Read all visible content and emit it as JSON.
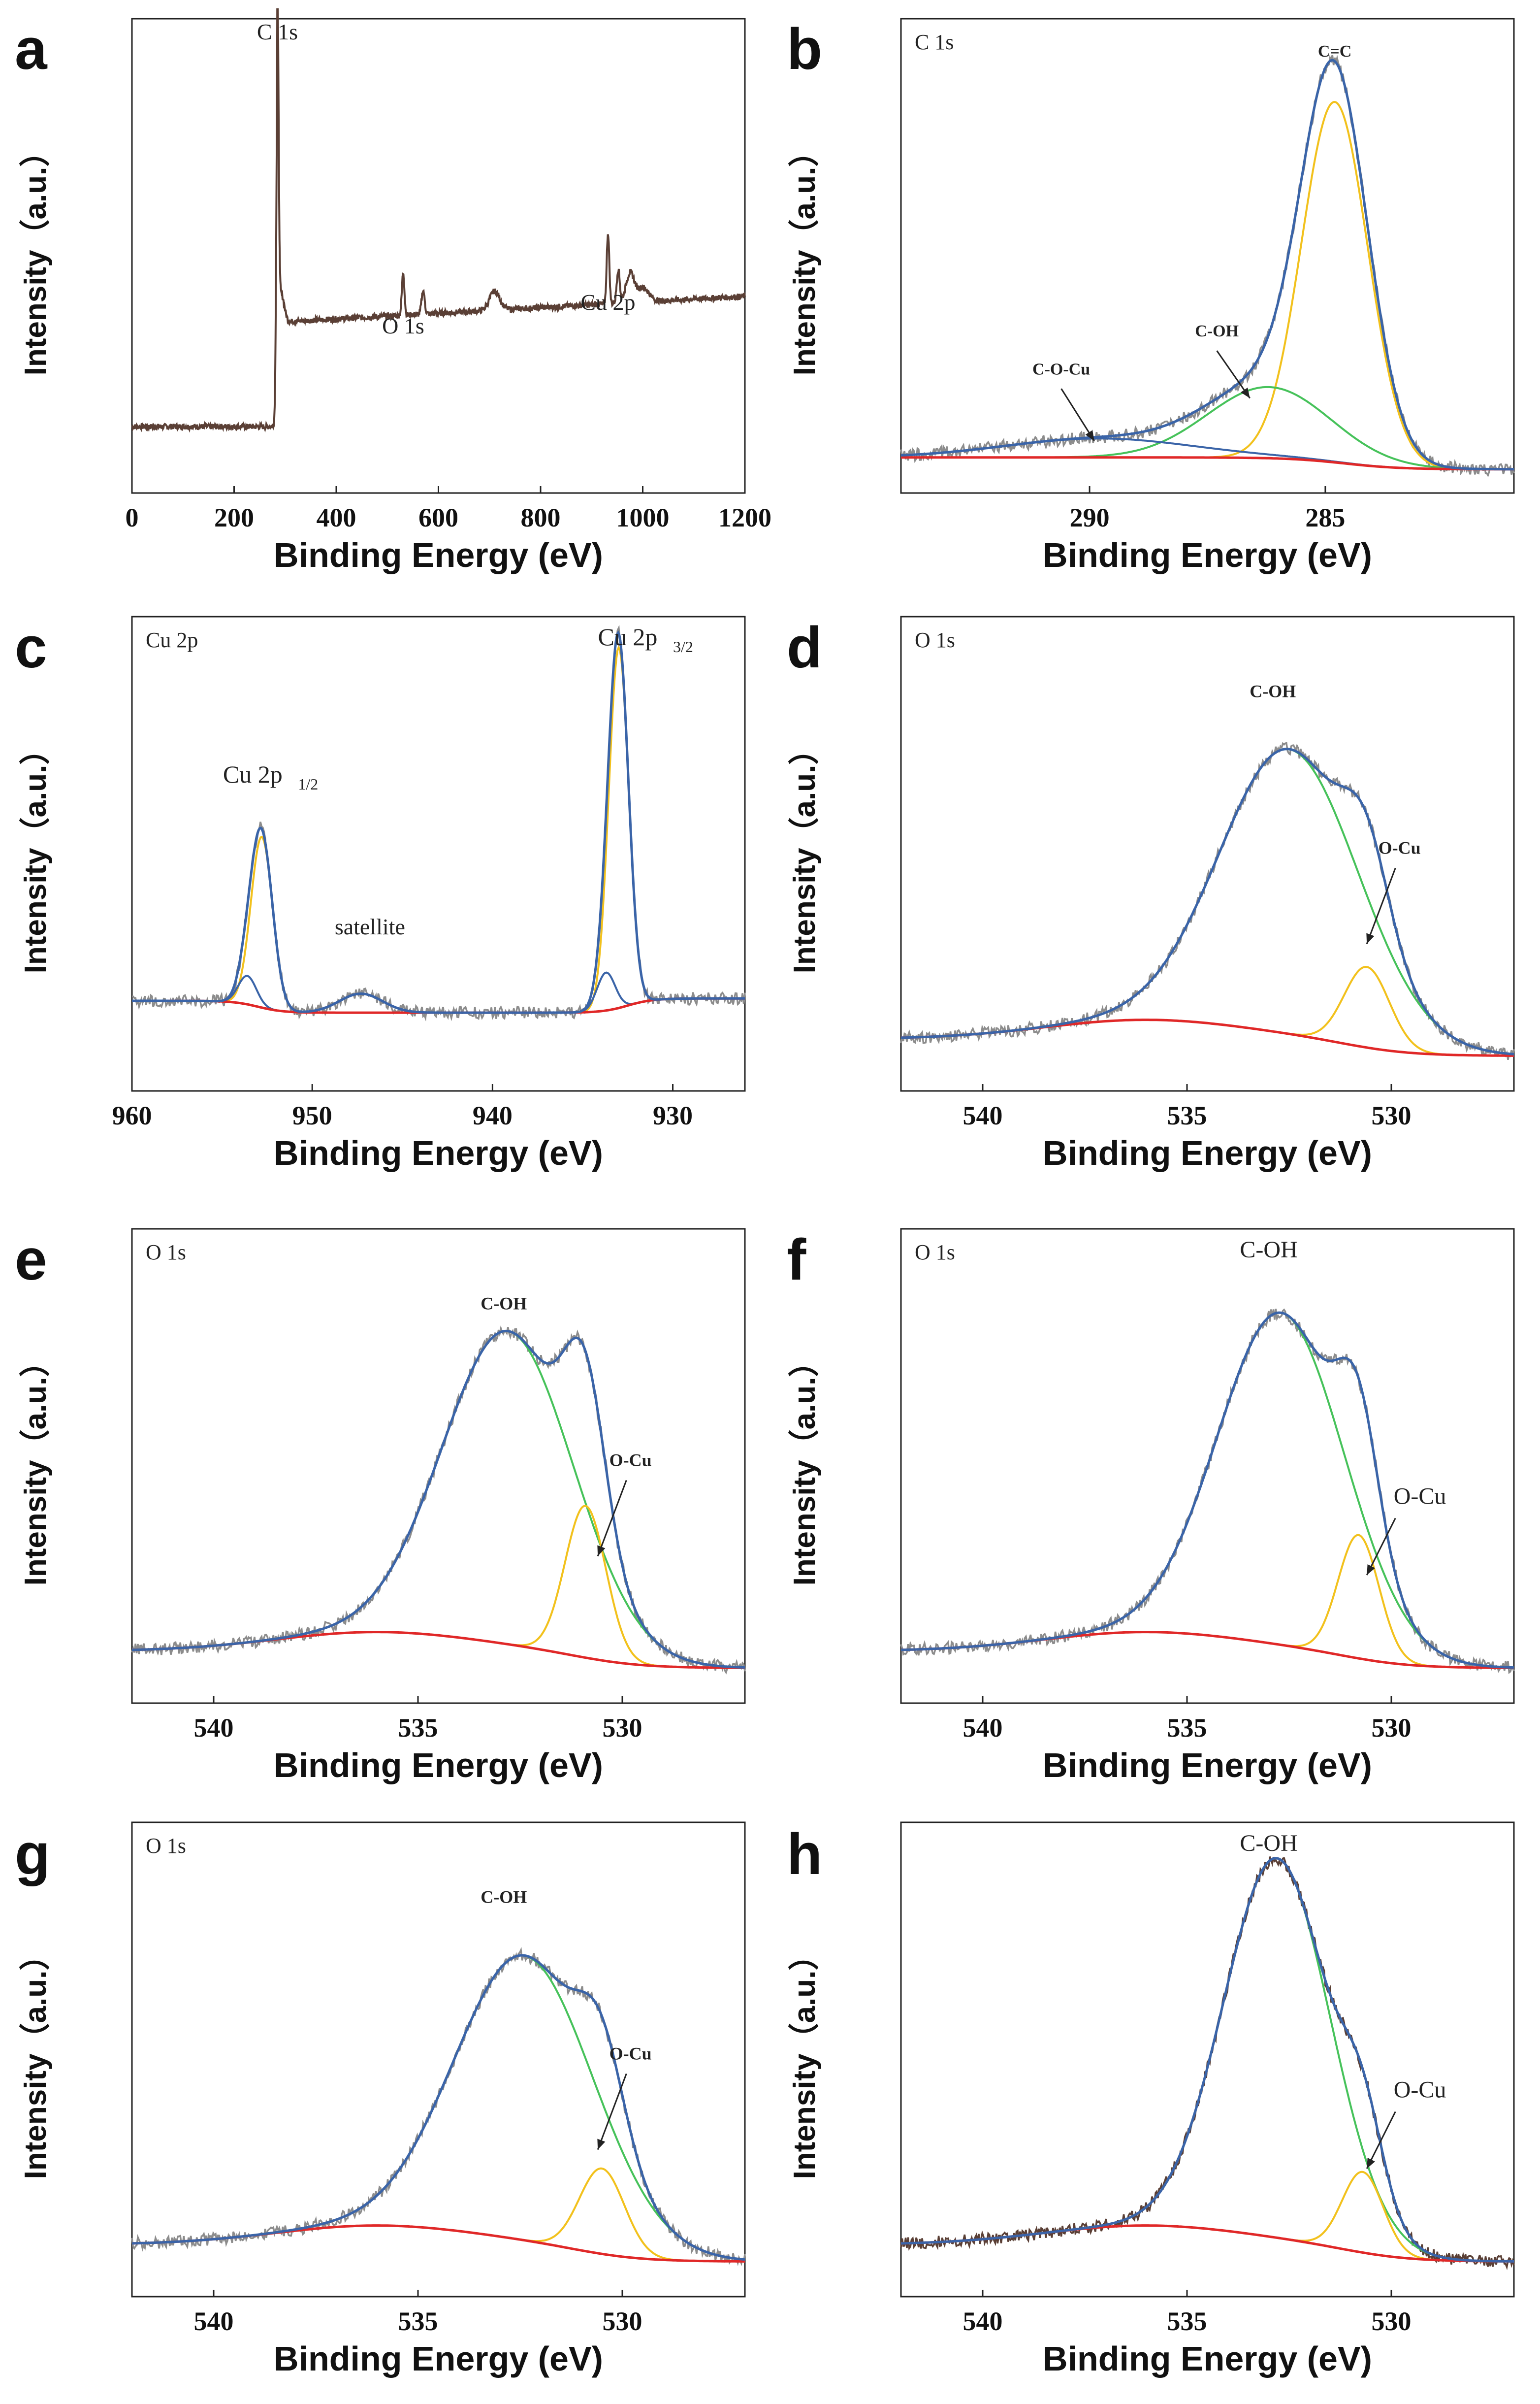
{
  "figure": {
    "axis_label_x": "Binding Energy (eV)",
    "axis_label_y": "Intensity（a.u.）"
  },
  "colors": {
    "raw": "#8c8c8c",
    "raw_dark": "#5a3f35",
    "envelope": "#3a64a8",
    "coh": "#46c25a",
    "ocu": "#f2c11c",
    "cc": "#f2c11c",
    "baseline": "#e02828",
    "axis": "#222222"
  },
  "chart_data": [
    {
      "panel": "a",
      "type": "line",
      "title": "",
      "xlabel": "Binding Energy (eV)",
      "ylabel": "Intensity（a.u.）",
      "xlim": [
        0,
        1200
      ],
      "ylim": [
        0,
        100
      ],
      "xticks": [
        0,
        200,
        400,
        600,
        800,
        1000,
        1200
      ],
      "peaks": [
        {
          "label": "C 1s",
          "x": 284.8,
          "y": 95
        },
        {
          "label": "O 1s",
          "x": 531,
          "y": 33
        },
        {
          "label": "Cu 2p",
          "x": 932,
          "y": 38
        }
      ]
    },
    {
      "panel": "b",
      "type": "line",
      "title": "C 1s",
      "xlabel": "Binding Energy (eV)",
      "ylabel": "Intensity（a.u.）",
      "xlim": [
        294,
        281
      ],
      "ylim": [
        0,
        100
      ],
      "xticks": [
        290,
        285
      ],
      "components": [
        {
          "name": "C=C",
          "center": 284.8,
          "height": 76,
          "width": 0.7
        },
        {
          "name": "C-OH",
          "center": 286.2,
          "height": 15,
          "width": 1.3
        },
        {
          "name": "C-O-Cu",
          "center": 289.8,
          "height": 4,
          "width": 2.0
        }
      ],
      "annotations": [
        "C=C",
        "C-OH",
        "C-O-Cu"
      ]
    },
    {
      "panel": "c",
      "type": "line",
      "title": "Cu 2p",
      "xlabel": "Binding Energy (eV)",
      "ylabel": "Intensity（a.u.）",
      "xlim": [
        960,
        926
      ],
      "ylim": [
        0,
        100
      ],
      "xticks": [
        960,
        950,
        940,
        930
      ],
      "components": [
        {
          "name": "Cu 2p3/2",
          "center": 933.0,
          "height": 76,
          "width": 0.55
        },
        {
          "name": "Cu 2p3/2 shoulder",
          "center": 933.7,
          "height": 8,
          "width": 0.5
        },
        {
          "name": "Cu 2p1/2",
          "center": 952.8,
          "height": 36,
          "width": 0.6
        },
        {
          "name": "Cu 2p1/2 shoulder",
          "center": 953.6,
          "height": 6,
          "width": 0.5
        },
        {
          "name": "satellite",
          "center": 947.3,
          "height": 4,
          "width": 1.2
        }
      ],
      "annotations": [
        "Cu 2p",
        "3/2",
        "Cu 2p",
        "1/2",
        "satellite"
      ]
    },
    {
      "panel": "d",
      "type": "line",
      "title": "O 1s",
      "xlabel": "Binding Energy (eV)",
      "ylabel": "Intensity（a.u.）",
      "xlim": [
        542,
        527
      ],
      "ylim": [
        0,
        100
      ],
      "xticks": [
        540,
        535,
        530
      ],
      "components": [
        {
          "name": "C-OH",
          "center": 532.5,
          "height": 60,
          "width": 1.7
        },
        {
          "name": "O-Cu",
          "center": 530.6,
          "height": 17,
          "width": 0.55
        }
      ],
      "annotations": [
        "C-OH",
        "O-Cu"
      ]
    },
    {
      "panel": "e",
      "type": "line",
      "title": "O 1s",
      "xlabel": "Binding Energy (eV)",
      "ylabel": "Intensity（a.u.）",
      "xlim": [
        542,
        527
      ],
      "ylim": [
        0,
        100
      ],
      "xticks": [
        540,
        535,
        530
      ],
      "components": [
        {
          "name": "C-OH",
          "center": 532.8,
          "height": 66,
          "width": 1.6
        },
        {
          "name": "O-Cu",
          "center": 530.9,
          "height": 32,
          "width": 0.5
        }
      ],
      "annotations": [
        "C-OH",
        "O-Cu"
      ]
    },
    {
      "panel": "f",
      "type": "line",
      "title": "O 1s",
      "xlabel": "Binding Energy (eV)",
      "ylabel": "Intensity（a.u.）",
      "xlim": [
        542,
        527
      ],
      "ylim": [
        0,
        100
      ],
      "xticks": [
        540,
        535,
        530
      ],
      "components": [
        {
          "name": "C-OH",
          "center": 532.7,
          "height": 70,
          "width": 1.55
        },
        {
          "name": "O-Cu",
          "center": 530.8,
          "height": 26,
          "width": 0.5
        }
      ],
      "annotations": [
        "C-OH",
        "O-Cu"
      ]
    },
    {
      "panel": "g",
      "type": "line",
      "title": "O 1s",
      "xlabel": "Binding Energy (eV)",
      "ylabel": "Intensity（a.u.）",
      "xlim": [
        542,
        527
      ],
      "ylim": [
        0,
        100
      ],
      "xticks": [
        540,
        535,
        530
      ],
      "components": [
        {
          "name": "C-OH",
          "center": 532.4,
          "height": 60,
          "width": 1.7
        },
        {
          "name": "O-Cu",
          "center": 530.5,
          "height": 18,
          "width": 0.55
        }
      ],
      "annotations": [
        "C-OH",
        "O-Cu"
      ]
    },
    {
      "panel": "h",
      "type": "line",
      "title": "",
      "xlabel": "Binding Energy (eV)",
      "ylabel": "Intensity（a.u.）",
      "xlim": [
        542,
        527
      ],
      "ylim": [
        0,
        100
      ],
      "xticks": [
        540,
        535,
        530
      ],
      "components": [
        {
          "name": "C-OH",
          "center": 532.8,
          "height": 80,
          "width": 1.3
        },
        {
          "name": "O-Cu",
          "center": 530.7,
          "height": 17,
          "width": 0.5
        }
      ],
      "annotations": [
        "C-OH",
        "O-Cu"
      ]
    }
  ]
}
